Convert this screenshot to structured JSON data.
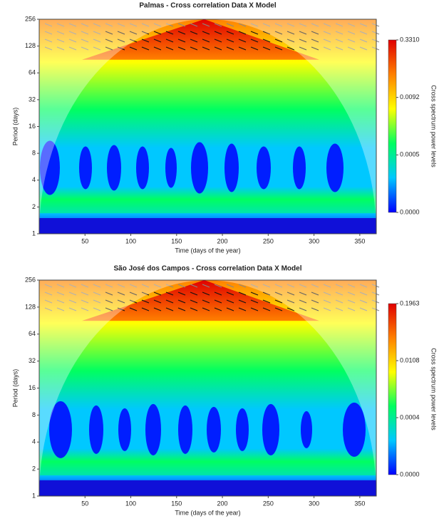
{
  "chart_data": [
    {
      "type": "heatmap",
      "title": "Palmas - Cross correlation Data X Model",
      "xlabel": "Time (days of the year)",
      "ylabel": "Period (days)",
      "xlim": [
        0,
        368
      ],
      "xticks": [
        50,
        100,
        150,
        200,
        250,
        300,
        350
      ],
      "ylim": [
        1,
        256
      ],
      "y_scale": "log2",
      "yticks": [
        1,
        2,
        4,
        8,
        16,
        32,
        64,
        128,
        256
      ],
      "colormap": [
        "#0000ff",
        "#00c8ff",
        "#00ff60",
        "#ffff00",
        "#ff8000",
        "#e00000"
      ],
      "colorbar": {
        "label": "Cross spectrum power levels",
        "ticks": [
          {
            "value": 0,
            "label": "0.0000"
          },
          {
            "value": 0.0005,
            "label": "0.0005"
          },
          {
            "value": 0.0092,
            "label": "0.0092"
          },
          {
            "value": 0.331,
            "label": "0.3310"
          }
        ]
      }
    },
    {
      "type": "heatmap",
      "title": "São José dos Campos - Cross correlation Data X Model",
      "xlabel": "Time (days of the year)",
      "ylabel": "Period (days)",
      "xlim": [
        0,
        368
      ],
      "xticks": [
        50,
        100,
        150,
        200,
        250,
        300,
        350
      ],
      "ylim": [
        1,
        256
      ],
      "y_scale": "log2",
      "yticks": [
        1,
        2,
        4,
        8,
        16,
        32,
        64,
        128,
        256
      ],
      "colormap": [
        "#0000ff",
        "#00c8ff",
        "#00ff60",
        "#ffff00",
        "#ff8000",
        "#e00000"
      ],
      "colorbar": {
        "label": "Cross spectrum power levels",
        "ticks": [
          {
            "value": 0,
            "label": "0.0000"
          },
          {
            "value": 0.0004,
            "label": "0.0004"
          },
          {
            "value": 0.0108,
            "label": "0.0108"
          },
          {
            "value": 0.1963,
            "label": "0.1963"
          }
        ]
      }
    }
  ]
}
